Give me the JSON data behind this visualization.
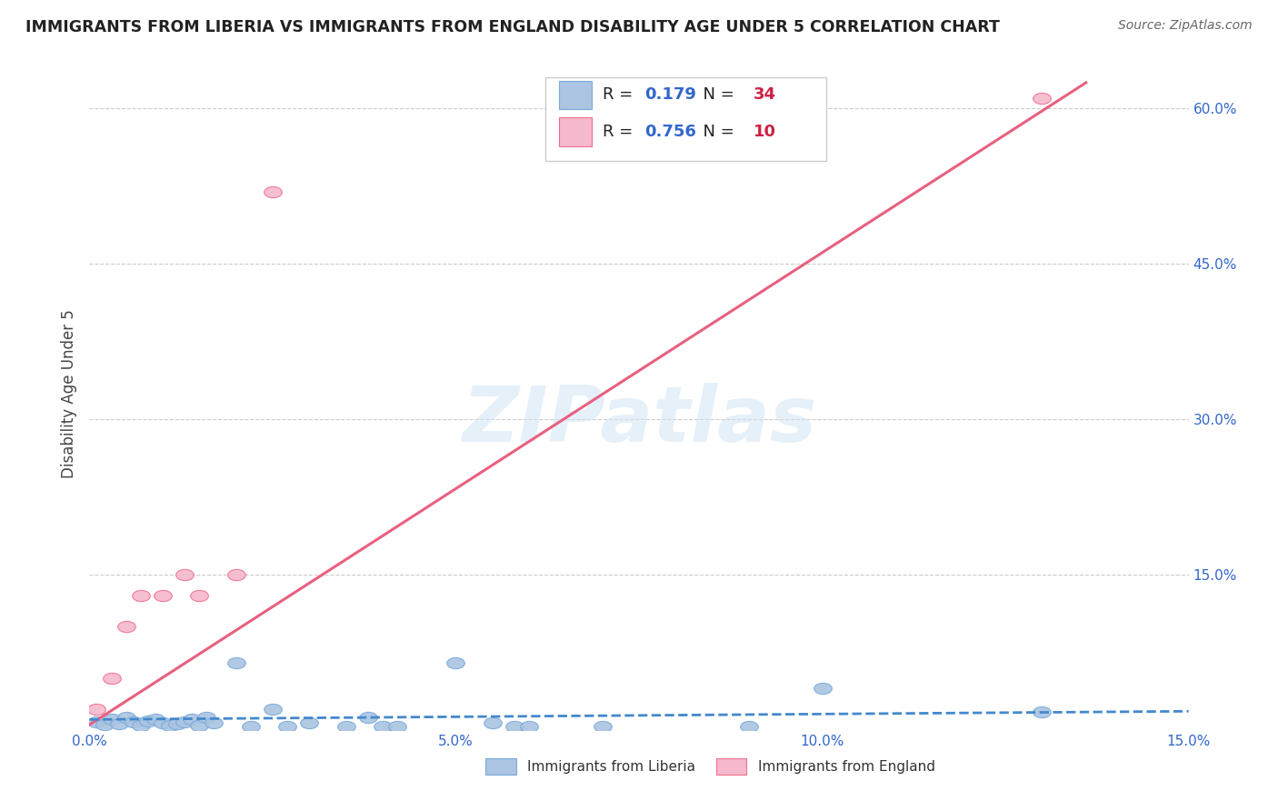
{
  "title": "IMMIGRANTS FROM LIBERIA VS IMMIGRANTS FROM ENGLAND DISABILITY AGE UNDER 5 CORRELATION CHART",
  "source": "Source: ZipAtlas.com",
  "ylabel": "Disability Age Under 5",
  "x_min": 0.0,
  "x_max": 0.15,
  "y_min": 0.0,
  "y_max": 0.65,
  "x_ticks": [
    0.0,
    0.05,
    0.1,
    0.15
  ],
  "x_tick_labels": [
    "0.0%",
    "5.0%",
    "10.0%",
    "15.0%"
  ],
  "y_ticks": [
    0.0,
    0.15,
    0.3,
    0.45,
    0.6
  ],
  "y_tick_labels": [
    "",
    "15.0%",
    "30.0%",
    "45.0%",
    "60.0%"
  ],
  "liberia_color": "#aac4e2",
  "liberia_edge_color": "#7aabda",
  "england_color": "#f5b8cc",
  "england_edge_color": "#f07090",
  "liberia_line_color": "#4488cc",
  "england_line_color": "#e86080",
  "watermark": "ZIPatlas",
  "legend_liberia": "Immigrants from Liberia",
  "legend_england": "Immigrants from England",
  "R_liberia": "0.179",
  "N_liberia": "34",
  "R_england": "0.756",
  "N_england": "10",
  "liberia_x": [
    0.001,
    0.002,
    0.003,
    0.004,
    0.005,
    0.006,
    0.007,
    0.008,
    0.009,
    0.01,
    0.011,
    0.012,
    0.013,
    0.014,
    0.015,
    0.016,
    0.017,
    0.02,
    0.022,
    0.025,
    0.027,
    0.03,
    0.035,
    0.038,
    0.04,
    0.042,
    0.05,
    0.055,
    0.058,
    0.06,
    0.07,
    0.09,
    0.1,
    0.13
  ],
  "liberia_y": [
    0.008,
    0.005,
    0.01,
    0.006,
    0.012,
    0.008,
    0.004,
    0.009,
    0.01,
    0.007,
    0.004,
    0.006,
    0.008,
    0.01,
    0.004,
    0.012,
    0.007,
    0.065,
    0.003,
    0.02,
    0.003,
    0.007,
    0.003,
    0.012,
    0.003,
    0.003,
    0.065,
    0.007,
    0.003,
    0.003,
    0.003,
    0.003,
    0.04,
    0.017
  ],
  "england_x": [
    0.001,
    0.003,
    0.005,
    0.007,
    0.01,
    0.013,
    0.015,
    0.02,
    0.025,
    0.13
  ],
  "england_y": [
    0.02,
    0.05,
    0.1,
    0.13,
    0.13,
    0.15,
    0.13,
    0.15,
    0.52,
    0.61
  ],
  "eng_line_x0": 0.0,
  "eng_line_y0": 0.005,
  "eng_line_x1": 0.136,
  "eng_line_y1": 0.625,
  "lib_line_x0": 0.0,
  "lib_line_y0": 0.01,
  "lib_line_x1": 0.15,
  "lib_line_y1": 0.018
}
